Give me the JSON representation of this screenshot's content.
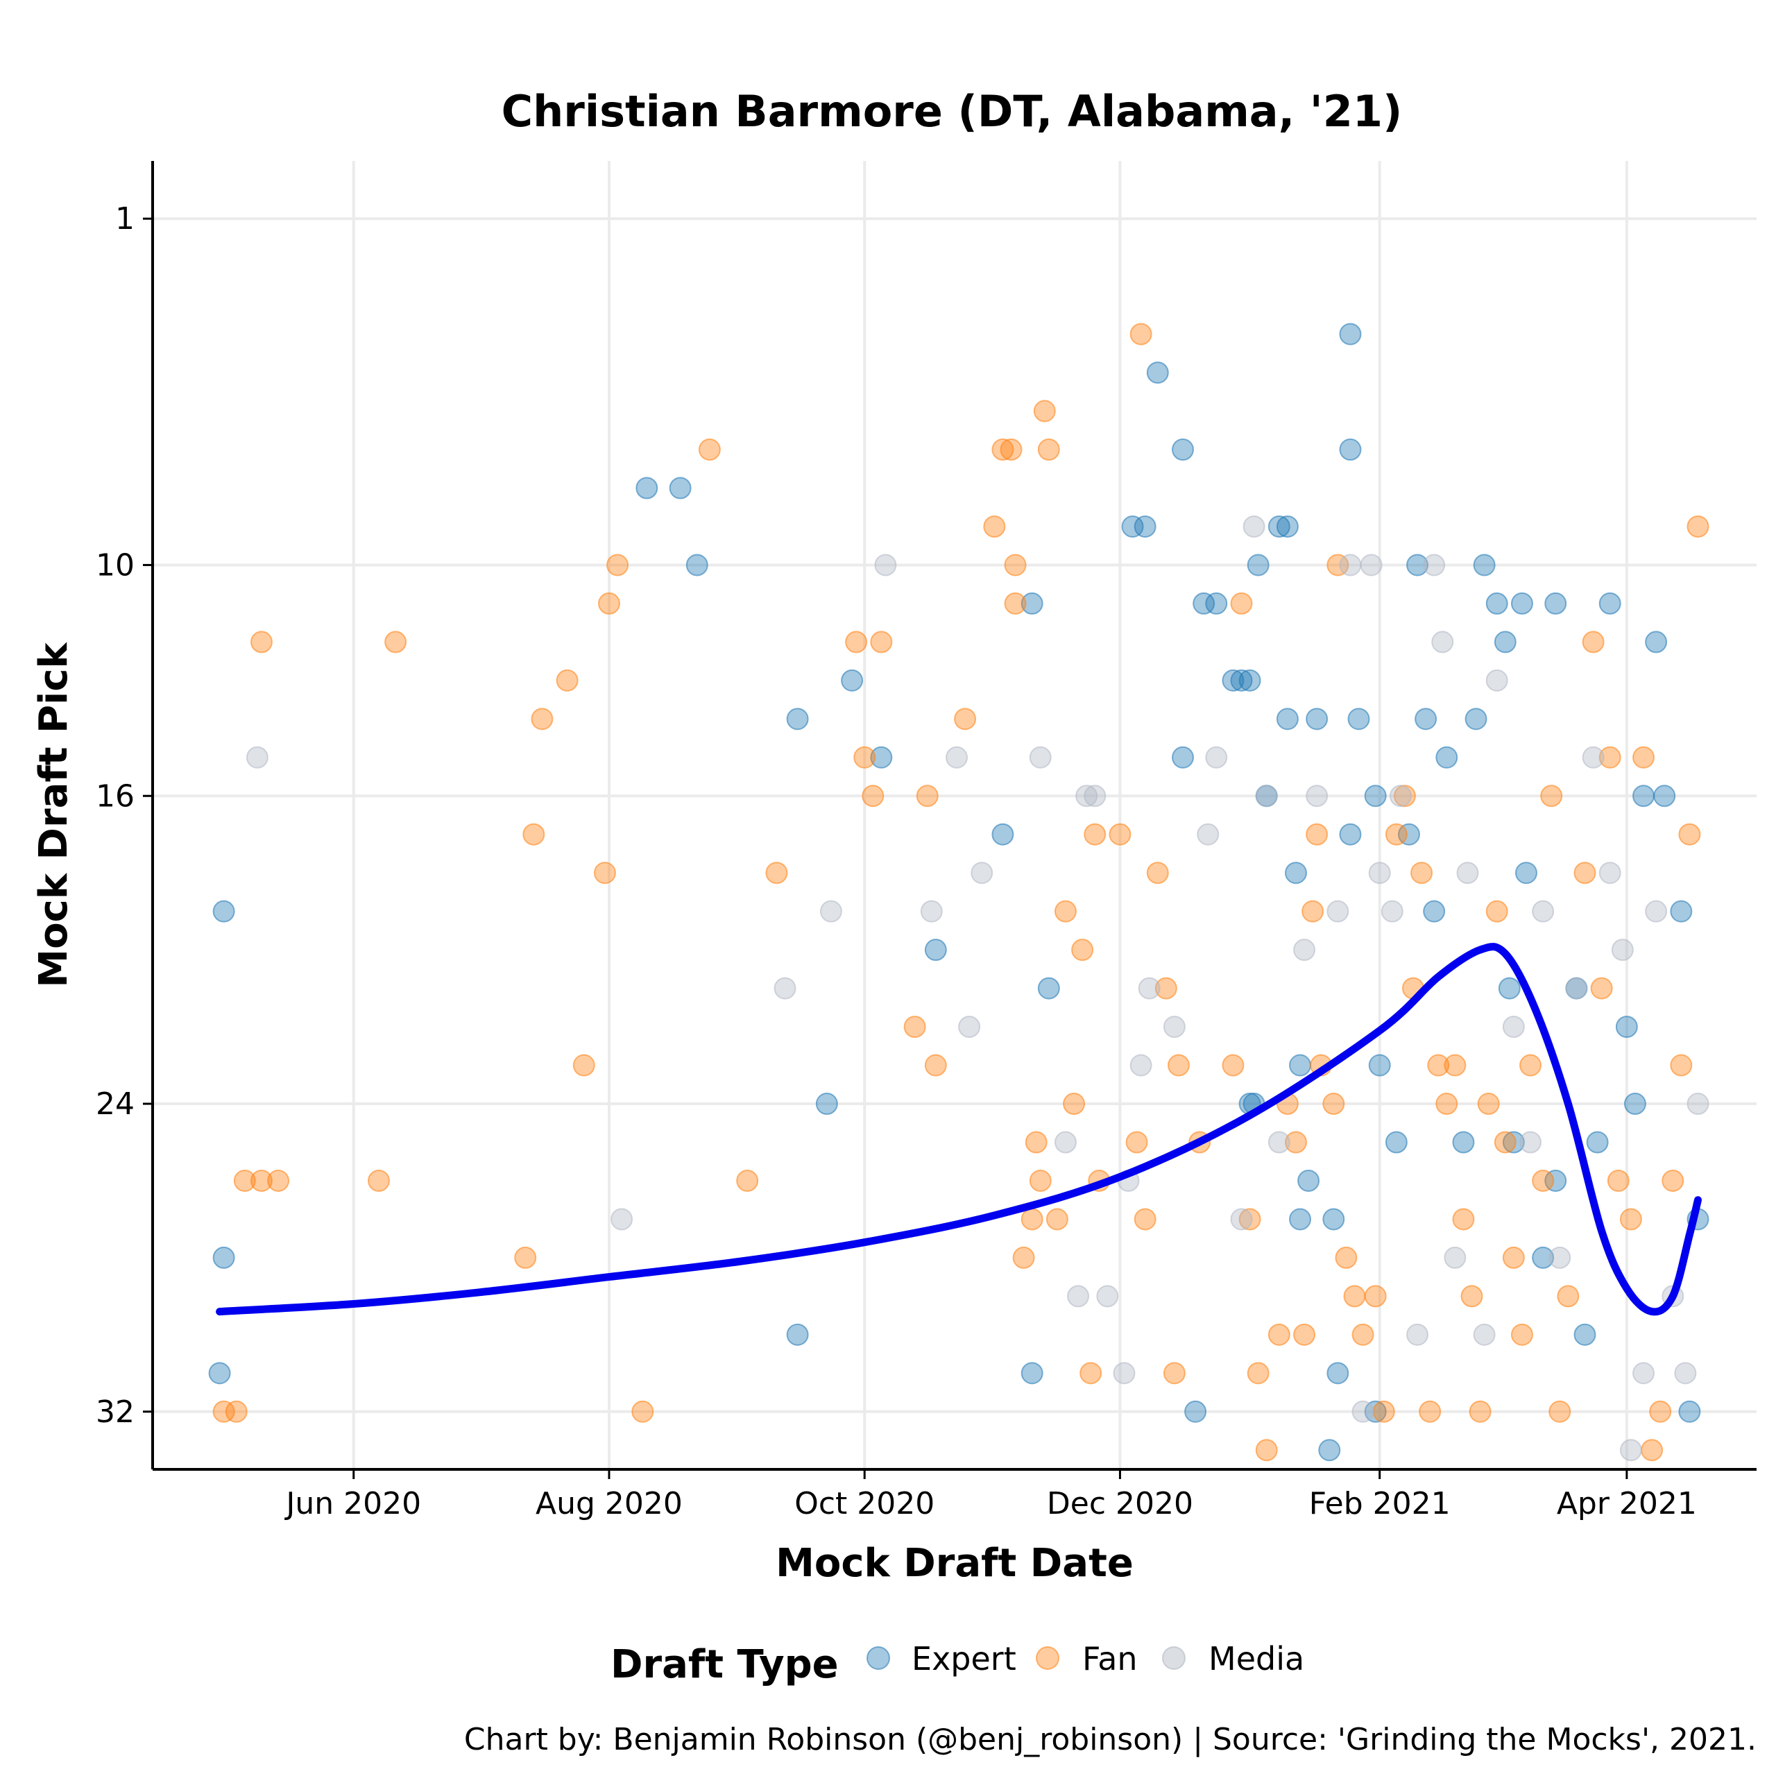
{
  "chart_data": {
    "type": "scatter",
    "title": "Christian Barmore (DT, Alabama, '21)",
    "xlabel": "Mock Draft Date",
    "ylabel": "Mock Draft Pick",
    "x_ticks": [
      "Jun 2020",
      "Aug 2020",
      "Oct 2020",
      "Dec 2020",
      "Feb 2021",
      "Apr 2021"
    ],
    "x_tick_dates": [
      "2020-06-01",
      "2020-08-01",
      "2020-10-01",
      "2020-12-01",
      "2021-02-01",
      "2021-04-01"
    ],
    "xlim": [
      "2020-04-14",
      "2021-05-02"
    ],
    "y_ticks": [
      1,
      10,
      16,
      24,
      32
    ],
    "ylim": [
      33.5,
      -0.5
    ],
    "y_reversed": true,
    "grid": true,
    "legend": {
      "title": "Draft Type",
      "position": "bottom",
      "entries": [
        "Expert",
        "Fan",
        "Media"
      ]
    },
    "colors": {
      "Expert": "#1f77b4",
      "Fan": "#ff7f0e",
      "Media": "#b0b7c3",
      "trend": "#0000ee"
    },
    "series": [
      {
        "name": "Expert",
        "points": [
          [
            "2020-05-01",
            19
          ],
          [
            "2020-05-01",
            28
          ],
          [
            "2020-04-30",
            31
          ],
          [
            "2020-08-10",
            8
          ],
          [
            "2020-08-18",
            8
          ],
          [
            "2020-08-22",
            10
          ],
          [
            "2020-09-15",
            14
          ],
          [
            "2020-09-15",
            30
          ],
          [
            "2020-09-22",
            24
          ],
          [
            "2020-09-28",
            13
          ],
          [
            "2020-10-05",
            15
          ],
          [
            "2020-10-18",
            20
          ],
          [
            "2020-11-03",
            17
          ],
          [
            "2020-11-10",
            11
          ],
          [
            "2020-11-10",
            31
          ],
          [
            "2020-11-14",
            21
          ],
          [
            "2020-12-04",
            9
          ],
          [
            "2020-12-07",
            9
          ],
          [
            "2020-12-10",
            5
          ],
          [
            "2020-12-16",
            7
          ],
          [
            "2020-12-16",
            15
          ],
          [
            "2020-12-19",
            32
          ],
          [
            "2020-12-21",
            11
          ],
          [
            "2020-12-24",
            11
          ],
          [
            "2020-12-28",
            13
          ],
          [
            "2020-12-30",
            13
          ],
          [
            "2021-01-01",
            13
          ],
          [
            "2021-01-01",
            24
          ],
          [
            "2021-01-02",
            24
          ],
          [
            "2021-01-03",
            10
          ],
          [
            "2021-01-05",
            16
          ],
          [
            "2021-01-08",
            9
          ],
          [
            "2021-01-10",
            9
          ],
          [
            "2021-01-10",
            14
          ],
          [
            "2021-01-12",
            18
          ],
          [
            "2021-01-13",
            23
          ],
          [
            "2021-01-13",
            27
          ],
          [
            "2021-01-15",
            26
          ],
          [
            "2021-01-17",
            14
          ],
          [
            "2021-01-20",
            33
          ],
          [
            "2021-01-21",
            27
          ],
          [
            "2021-01-22",
            31
          ],
          [
            "2021-01-25",
            4
          ],
          [
            "2021-01-25",
            7
          ],
          [
            "2021-01-25",
            17
          ],
          [
            "2021-01-27",
            14
          ],
          [
            "2021-01-31",
            16
          ],
          [
            "2021-01-31",
            32
          ],
          [
            "2021-02-01",
            23
          ],
          [
            "2021-02-05",
            25
          ],
          [
            "2021-02-08",
            17
          ],
          [
            "2021-02-10",
            10
          ],
          [
            "2021-02-12",
            14
          ],
          [
            "2021-02-14",
            19
          ],
          [
            "2021-02-17",
            15
          ],
          [
            "2021-02-21",
            25
          ],
          [
            "2021-02-24",
            14
          ],
          [
            "2021-02-26",
            10
          ],
          [
            "2021-03-01",
            11
          ],
          [
            "2021-03-03",
            12
          ],
          [
            "2021-03-04",
            21
          ],
          [
            "2021-03-05",
            25
          ],
          [
            "2021-03-07",
            11
          ],
          [
            "2021-03-08",
            18
          ],
          [
            "2021-03-12",
            28
          ],
          [
            "2021-03-15",
            11
          ],
          [
            "2021-03-15",
            26
          ],
          [
            "2021-03-20",
            21
          ],
          [
            "2021-03-22",
            30
          ],
          [
            "2021-03-25",
            25
          ],
          [
            "2021-03-28",
            11
          ],
          [
            "2021-04-01",
            22
          ],
          [
            "2021-04-03",
            24
          ],
          [
            "2021-04-05",
            16
          ],
          [
            "2021-04-08",
            12
          ],
          [
            "2021-04-10",
            16
          ],
          [
            "2021-04-14",
            19
          ],
          [
            "2021-04-16",
            32
          ],
          [
            "2021-04-18",
            27
          ]
        ]
      },
      {
        "name": "Fan",
        "points": [
          [
            "2020-05-01",
            32
          ],
          [
            "2020-05-04",
            32
          ],
          [
            "2020-05-06",
            26
          ],
          [
            "2020-05-10",
            26
          ],
          [
            "2020-05-10",
            12
          ],
          [
            "2020-05-14",
            26
          ],
          [
            "2020-06-07",
            26
          ],
          [
            "2020-06-11",
            12
          ],
          [
            "2020-07-12",
            28
          ],
          [
            "2020-07-14",
            17
          ],
          [
            "2020-07-16",
            14
          ],
          [
            "2020-07-22",
            13
          ],
          [
            "2020-07-26",
            23
          ],
          [
            "2020-07-31",
            18
          ],
          [
            "2020-08-01",
            11
          ],
          [
            "2020-08-03",
            10
          ],
          [
            "2020-08-09",
            32
          ],
          [
            "2020-08-25",
            7
          ],
          [
            "2020-09-03",
            26
          ],
          [
            "2020-09-10",
            18
          ],
          [
            "2020-09-29",
            12
          ],
          [
            "2020-10-01",
            15
          ],
          [
            "2020-10-03",
            16
          ],
          [
            "2020-10-05",
            12
          ],
          [
            "2020-10-13",
            22
          ],
          [
            "2020-10-16",
            16
          ],
          [
            "2020-10-18",
            23
          ],
          [
            "2020-10-25",
            14
          ],
          [
            "2020-11-01",
            9
          ],
          [
            "2020-11-03",
            7
          ],
          [
            "2020-11-05",
            7
          ],
          [
            "2020-11-06",
            10
          ],
          [
            "2020-11-06",
            11
          ],
          [
            "2020-11-08",
            28
          ],
          [
            "2020-11-10",
            27
          ],
          [
            "2020-11-11",
            25
          ],
          [
            "2020-11-12",
            26
          ],
          [
            "2020-11-13",
            6
          ],
          [
            "2020-11-14",
            7
          ],
          [
            "2020-11-16",
            27
          ],
          [
            "2020-11-18",
            19
          ],
          [
            "2020-11-20",
            24
          ],
          [
            "2020-11-22",
            20
          ],
          [
            "2020-11-24",
            31
          ],
          [
            "2020-11-25",
            17
          ],
          [
            "2020-11-26",
            26
          ],
          [
            "2020-12-01",
            17
          ],
          [
            "2020-12-05",
            25
          ],
          [
            "2020-12-06",
            4
          ],
          [
            "2020-12-07",
            27
          ],
          [
            "2020-12-10",
            18
          ],
          [
            "2020-12-12",
            21
          ],
          [
            "2020-12-14",
            31
          ],
          [
            "2020-12-15",
            23
          ],
          [
            "2020-12-20",
            25
          ],
          [
            "2020-12-28",
            23
          ],
          [
            "2020-12-30",
            11
          ],
          [
            "2021-01-01",
            27
          ],
          [
            "2021-01-03",
            31
          ],
          [
            "2021-01-05",
            33
          ],
          [
            "2021-01-08",
            30
          ],
          [
            "2021-01-10",
            24
          ],
          [
            "2021-01-12",
            25
          ],
          [
            "2021-01-14",
            30
          ],
          [
            "2021-01-16",
            19
          ],
          [
            "2021-01-17",
            17
          ],
          [
            "2021-01-18",
            23
          ],
          [
            "2021-01-21",
            24
          ],
          [
            "2021-01-22",
            10
          ],
          [
            "2021-01-24",
            28
          ],
          [
            "2021-01-26",
            29
          ],
          [
            "2021-01-28",
            30
          ],
          [
            "2021-01-31",
            29
          ],
          [
            "2021-02-02",
            32
          ],
          [
            "2021-02-05",
            17
          ],
          [
            "2021-02-07",
            16
          ],
          [
            "2021-02-09",
            21
          ],
          [
            "2021-02-11",
            18
          ],
          [
            "2021-02-13",
            32
          ],
          [
            "2021-02-15",
            23
          ],
          [
            "2021-02-17",
            24
          ],
          [
            "2021-02-19",
            23
          ],
          [
            "2021-02-21",
            27
          ],
          [
            "2021-02-23",
            29
          ],
          [
            "2021-02-25",
            32
          ],
          [
            "2021-02-27",
            24
          ],
          [
            "2021-03-01",
            19
          ],
          [
            "2021-03-03",
            25
          ],
          [
            "2021-03-05",
            28
          ],
          [
            "2021-03-07",
            30
          ],
          [
            "2021-03-09",
            23
          ],
          [
            "2021-03-12",
            26
          ],
          [
            "2021-03-14",
            16
          ],
          [
            "2021-03-16",
            32
          ],
          [
            "2021-03-18",
            29
          ],
          [
            "2021-03-22",
            18
          ],
          [
            "2021-03-24",
            12
          ],
          [
            "2021-03-26",
            21
          ],
          [
            "2021-03-28",
            15
          ],
          [
            "2021-03-30",
            26
          ],
          [
            "2021-04-02",
            27
          ],
          [
            "2021-04-05",
            15
          ],
          [
            "2021-04-07",
            33
          ],
          [
            "2021-04-09",
            32
          ],
          [
            "2021-04-12",
            26
          ],
          [
            "2021-04-14",
            23
          ],
          [
            "2021-04-16",
            17
          ],
          [
            "2021-04-18",
            9
          ]
        ]
      },
      {
        "name": "Media",
        "points": [
          [
            "2020-05-09",
            15
          ],
          [
            "2020-08-04",
            27
          ],
          [
            "2020-09-12",
            21
          ],
          [
            "2020-09-23",
            19
          ],
          [
            "2020-10-06",
            10
          ],
          [
            "2020-10-17",
            19
          ],
          [
            "2020-10-23",
            15
          ],
          [
            "2020-10-26",
            22
          ],
          [
            "2020-10-29",
            18
          ],
          [
            "2020-11-12",
            15
          ],
          [
            "2020-11-18",
            25
          ],
          [
            "2020-11-21",
            29
          ],
          [
            "2020-11-23",
            16
          ],
          [
            "2020-11-25",
            16
          ],
          [
            "2020-11-28",
            29
          ],
          [
            "2020-12-02",
            31
          ],
          [
            "2020-12-03",
            26
          ],
          [
            "2020-12-06",
            23
          ],
          [
            "2020-12-08",
            21
          ],
          [
            "2020-12-14",
            22
          ],
          [
            "2020-12-22",
            17
          ],
          [
            "2020-12-24",
            15
          ],
          [
            "2020-12-30",
            27
          ],
          [
            "2021-01-02",
            9
          ],
          [
            "2021-01-05",
            16
          ],
          [
            "2021-01-08",
            25
          ],
          [
            "2021-01-14",
            20
          ],
          [
            "2021-01-17",
            16
          ],
          [
            "2021-01-22",
            19
          ],
          [
            "2021-01-25",
            10
          ],
          [
            "2021-01-28",
            32
          ],
          [
            "2021-01-30",
            10
          ],
          [
            "2021-02-01",
            18
          ],
          [
            "2021-02-04",
            19
          ],
          [
            "2021-02-06",
            16
          ],
          [
            "2021-02-10",
            30
          ],
          [
            "2021-02-14",
            10
          ],
          [
            "2021-02-16",
            12
          ],
          [
            "2021-02-19",
            28
          ],
          [
            "2021-02-22",
            18
          ],
          [
            "2021-02-26",
            30
          ],
          [
            "2021-03-01",
            13
          ],
          [
            "2021-03-05",
            22
          ],
          [
            "2021-03-09",
            25
          ],
          [
            "2021-03-12",
            19
          ],
          [
            "2021-03-16",
            28
          ],
          [
            "2021-03-20",
            21
          ],
          [
            "2021-03-24",
            15
          ],
          [
            "2021-03-28",
            18
          ],
          [
            "2021-03-31",
            20
          ],
          [
            "2021-04-02",
            33
          ],
          [
            "2021-04-05",
            31
          ],
          [
            "2021-04-08",
            19
          ],
          [
            "2021-04-12",
            29
          ],
          [
            "2021-04-15",
            31
          ],
          [
            "2021-04-18",
            24
          ]
        ]
      }
    ],
    "trend": {
      "name": "smoothed trend",
      "points": [
        [
          "2020-04-30",
          29.4
        ],
        [
          "2020-06-01",
          29.2
        ],
        [
          "2020-07-01",
          28.9
        ],
        [
          "2020-08-01",
          28.5
        ],
        [
          "2020-09-01",
          28.1
        ],
        [
          "2020-10-01",
          27.6
        ],
        [
          "2020-11-01",
          26.9
        ],
        [
          "2020-12-01",
          25.9
        ],
        [
          "2021-01-01",
          24.3
        ],
        [
          "2021-02-01",
          22.1
        ],
        [
          "2021-02-15",
          20.7
        ],
        [
          "2021-02-25",
          20.0
        ],
        [
          "2021-03-03",
          20.1
        ],
        [
          "2021-03-10",
          21.5
        ],
        [
          "2021-03-18",
          24.0
        ],
        [
          "2021-03-26",
          27.3
        ],
        [
          "2021-04-01",
          28.8
        ],
        [
          "2021-04-07",
          29.4
        ],
        [
          "2021-04-12",
          29.0
        ],
        [
          "2021-04-16",
          27.4
        ],
        [
          "2021-04-18",
          26.5
        ]
      ]
    }
  },
  "caption": "Chart by: Benjamin Robinson (@benj_robinson) | Source: 'Grinding the Mocks', 2021."
}
